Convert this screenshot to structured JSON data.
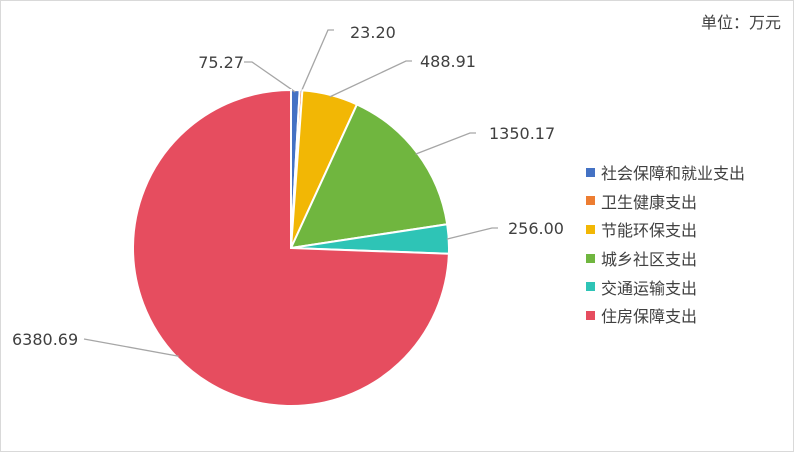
{
  "unit_label": "单位：万元",
  "chart_data": {
    "type": "pie",
    "categories": [
      "社会保障和就业支出",
      "卫生健康支出",
      "节能环保支出",
      "城乡社区支出",
      "交通运输支出",
      "住房保障支出"
    ],
    "values": [
      75.27,
      23.2,
      488.91,
      1350.17,
      256.0,
      6380.69
    ],
    "value_labels": [
      "75.27",
      "23.20",
      "488.91",
      "1350.17",
      "256.00",
      "6380.69"
    ],
    "colors": [
      "#4472c4",
      "#ed7d31",
      "#f2b705",
      "#70b63f",
      "#2ec4b6",
      "#e64d5f"
    ],
    "legend_position": "right"
  }
}
